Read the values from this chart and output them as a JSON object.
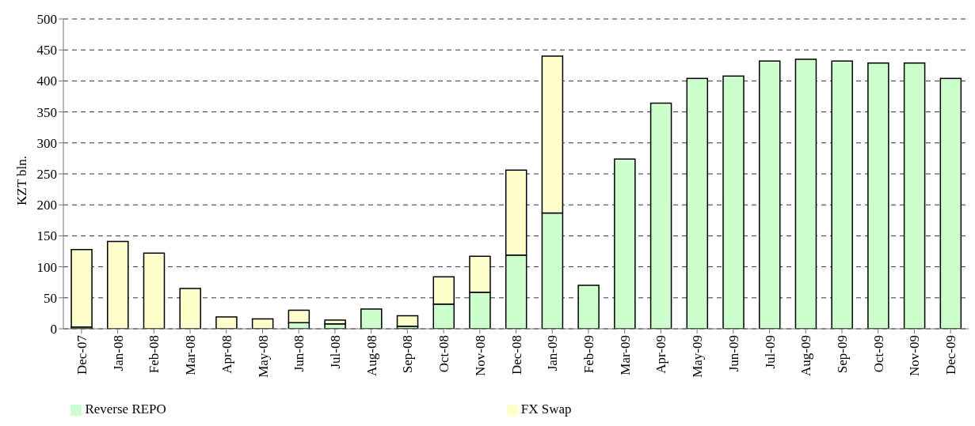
{
  "chart_data": {
    "type": "bar",
    "ylabel": "KZT bln.",
    "categories": [
      "Dec-07",
      "Jan-08",
      "Feb-08",
      "Mar-08",
      "Apr-08",
      "May-08",
      "Jun-08",
      "Jul-08",
      "Aug-08",
      "Sep-08",
      "Oct-08",
      "Nov-08",
      "Dec-08",
      "Jan-09",
      "Feb-09",
      "Mar-09",
      "Apr-09",
      "May-09",
      "Jun-09",
      "Jul-09",
      "Aug-09",
      "Sep-09",
      "Oct-09",
      "Nov-09",
      "Dec-09"
    ],
    "series": [
      {
        "name": "Reverse REPO",
        "color": "#ccffcc",
        "values": [
          3,
          0,
          0,
          0,
          0,
          0,
          10,
          8,
          32,
          4,
          40,
          59,
          119,
          187,
          70,
          274,
          364,
          404,
          408,
          432,
          435,
          432,
          429,
          429,
          404
        ]
      },
      {
        "name": "FX Swap",
        "color": "#ffffcc",
        "values": [
          125,
          141,
          122,
          65,
          19,
          16,
          20,
          6,
          0,
          17,
          44,
          58,
          137,
          253,
          0,
          0,
          0,
          0,
          0,
          0,
          0,
          0,
          0,
          0,
          0
        ]
      }
    ],
    "stacked": true,
    "ylim": [
      0,
      500
    ],
    "yticks": [
      0,
      50,
      100,
      150,
      200,
      250,
      300,
      350,
      400,
      450,
      500
    ],
    "grid": "y",
    "legend": "bottom"
  }
}
